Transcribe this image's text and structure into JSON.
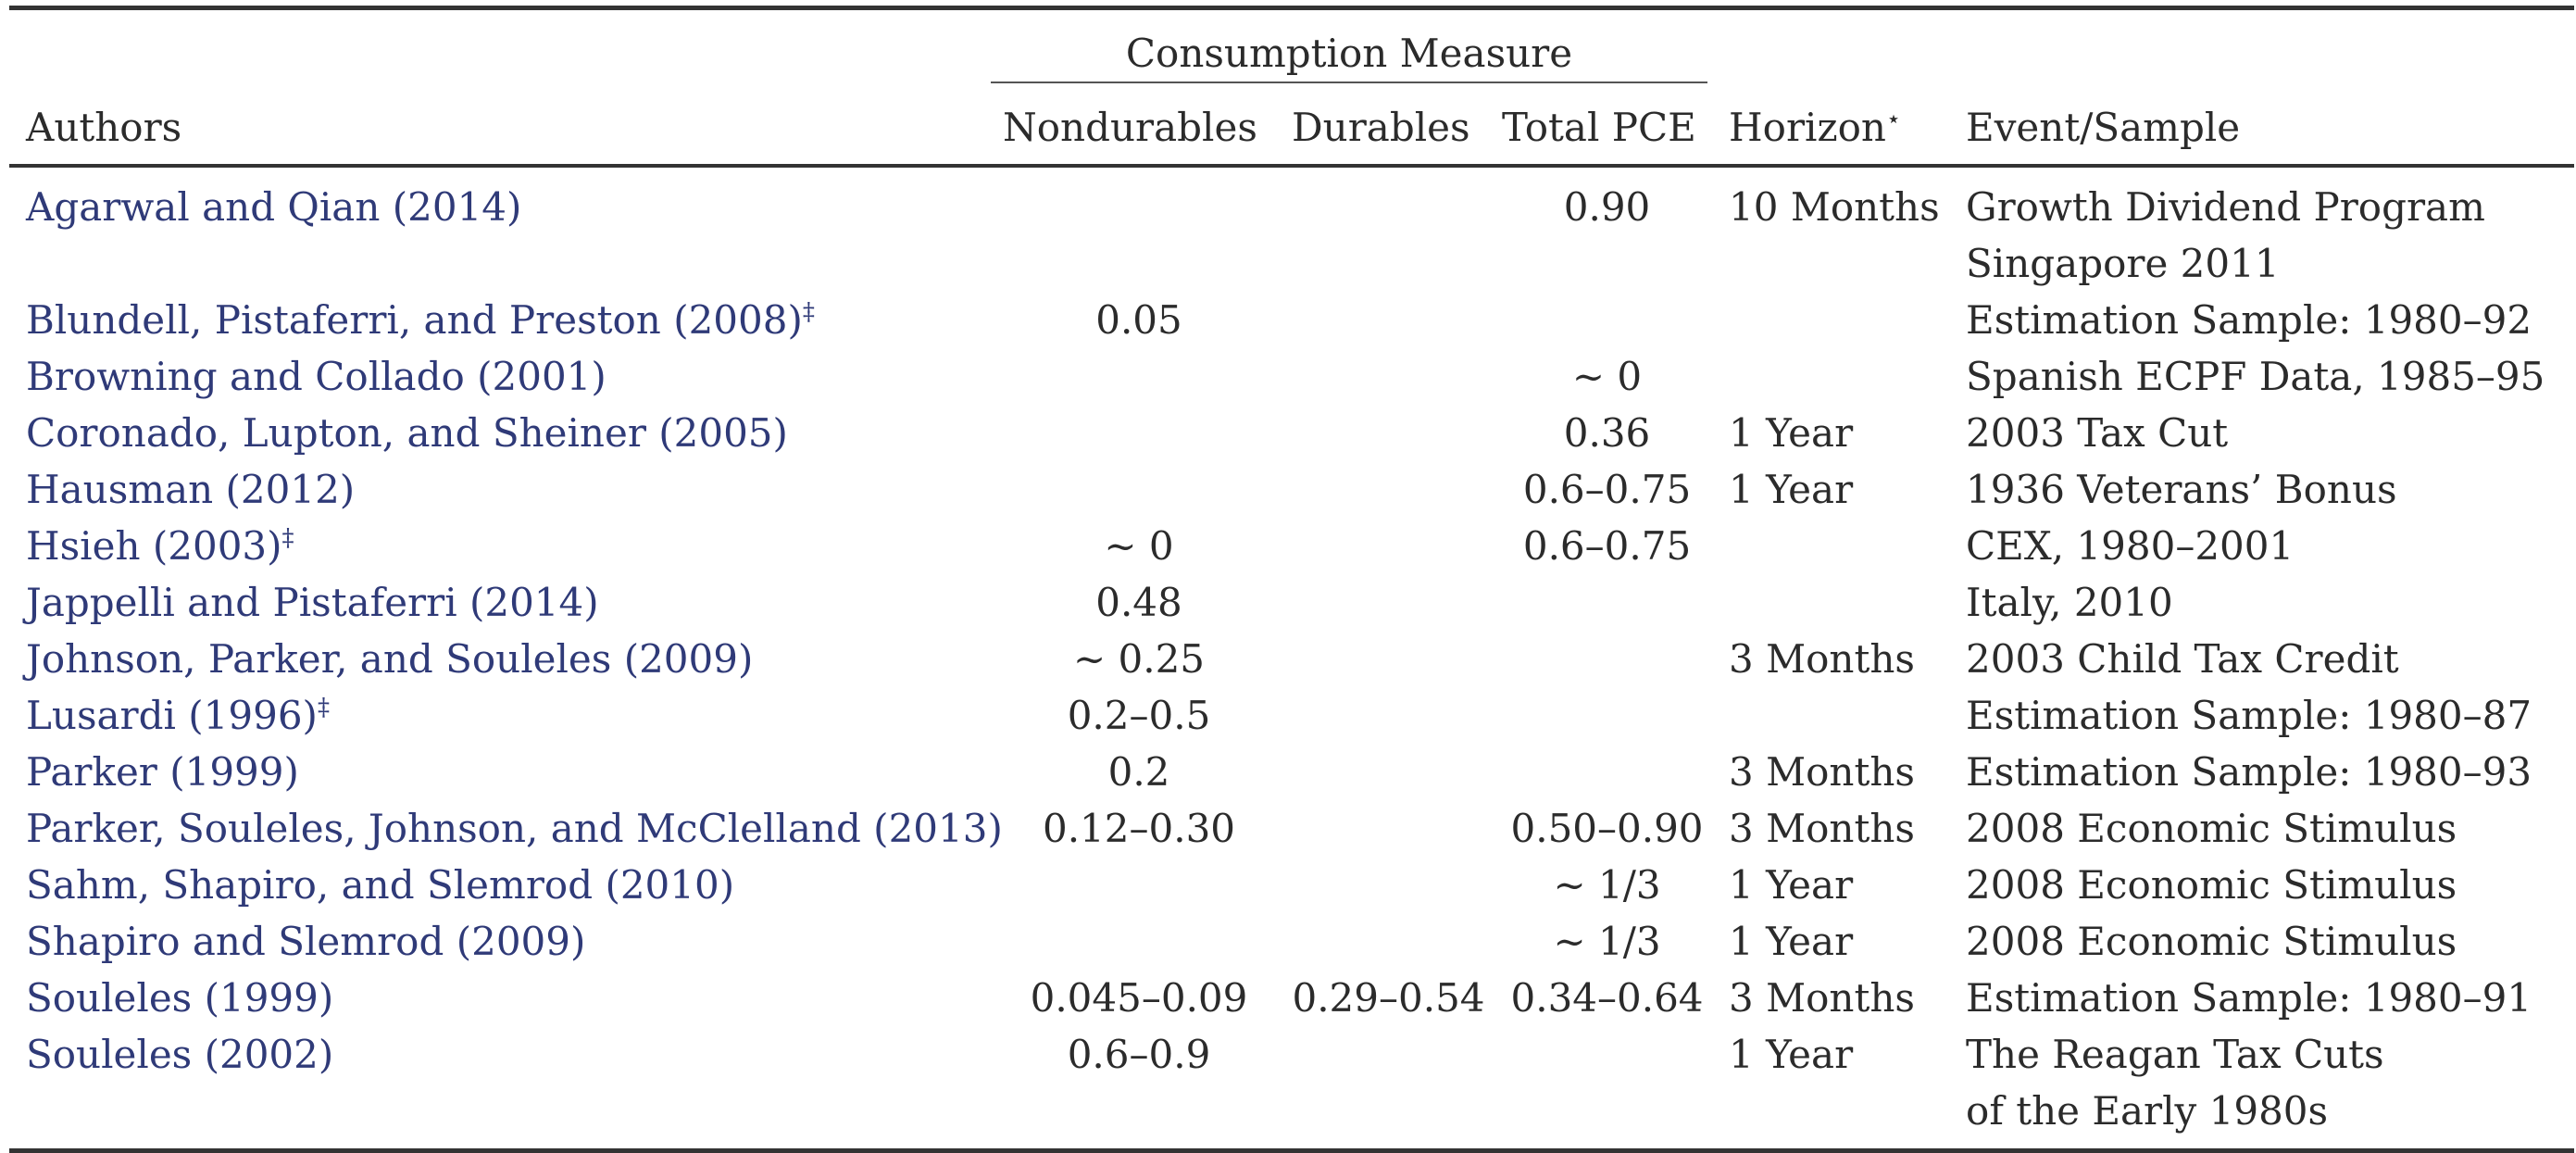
{
  "table": {
    "group_header": "Consumption Measure",
    "headers": {
      "authors": "Authors",
      "nondurables": "Nondurables",
      "durables": "Durables",
      "total_pce": "Total PCE",
      "horizon": "Horizon",
      "horizon_mark": "⋆",
      "event": "Event/Sample"
    },
    "rows": [
      {
        "authors": "Agarwal and Qian (2014)",
        "mark": "",
        "nondurables": "",
        "durables": "",
        "total_pce": "0.90",
        "horizon": "10 Months",
        "event": [
          "Growth Dividend Program",
          "Singapore 2011"
        ]
      },
      {
        "authors": "Blundell, Pistaferri, and Preston (2008)",
        "mark": "‡",
        "nondurables": "0.05",
        "durables": "",
        "total_pce": "",
        "horizon": "",
        "event": [
          "Estimation Sample: 1980–92",
          ""
        ]
      },
      {
        "authors": "Browning and Collado (2001)",
        "mark": "",
        "nondurables": "",
        "durables": "",
        "total_pce": "∼ 0",
        "horizon": "",
        "event": [
          "Spanish ECPF Data, 1985–95",
          ""
        ]
      },
      {
        "authors": "Coronado, Lupton, and Sheiner (2005)",
        "mark": "",
        "nondurables": "",
        "durables": "",
        "total_pce": "0.36",
        "horizon": "1 Year",
        "event": [
          "2003 Tax Cut",
          ""
        ]
      },
      {
        "authors": "Hausman (2012)",
        "mark": "",
        "nondurables": "",
        "durables": "",
        "total_pce": "0.6–0.75",
        "horizon": "1 Year",
        "event": [
          "1936 Veterans’ Bonus",
          ""
        ]
      },
      {
        "authors": "Hsieh (2003)",
        "mark": "‡",
        "nondurables": "∼ 0",
        "durables": "",
        "total_pce": "0.6–0.75",
        "horizon": "",
        "event": [
          "CEX, 1980–2001",
          ""
        ]
      },
      {
        "authors": "Jappelli and Pistaferri (2014)",
        "mark": "",
        "nondurables": "0.48",
        "durables": "",
        "total_pce": "",
        "horizon": "",
        "event": [
          "Italy, 2010",
          ""
        ]
      },
      {
        "authors": "Johnson, Parker, and Souleles (2009)",
        "mark": "",
        "nondurables": "∼ 0.25",
        "durables": "",
        "total_pce": "",
        "horizon": "3 Months",
        "event": [
          "2003 Child Tax Credit",
          ""
        ]
      },
      {
        "authors": "Lusardi (1996)",
        "mark": "‡",
        "nondurables": "0.2–0.5",
        "durables": "",
        "total_pce": "",
        "horizon": "",
        "event": [
          "Estimation Sample: 1980–87",
          ""
        ]
      },
      {
        "authors": "Parker (1999)",
        "mark": "",
        "nondurables": "0.2",
        "durables": "",
        "total_pce": "",
        "horizon": "3 Months",
        "event": [
          "Estimation Sample: 1980–93",
          ""
        ]
      },
      {
        "authors": "Parker, Souleles, Johnson, and McClelland (2013)",
        "mark": "",
        "nondurables": "0.12–0.30",
        "durables": "",
        "total_pce": "0.50–0.90",
        "horizon": "3 Months",
        "event": [
          "2008 Economic Stimulus",
          ""
        ]
      },
      {
        "authors": "Sahm, Shapiro, and Slemrod (2010)",
        "mark": "",
        "nondurables": "",
        "durables": "",
        "total_pce": "∼ 1/3",
        "horizon": "1 Year",
        "event": [
          "2008 Economic Stimulus",
          ""
        ]
      },
      {
        "authors": "Shapiro and Slemrod (2009)",
        "mark": "",
        "nondurables": "",
        "durables": "",
        "total_pce": "∼ 1/3",
        "horizon": "1 Year",
        "event": [
          "2008 Economic Stimulus",
          ""
        ]
      },
      {
        "authors": "Souleles (1999)",
        "mark": "",
        "nondurables": "0.045–0.09",
        "durables": "0.29–0.54",
        "total_pce": "0.34–0.64",
        "horizon": "3 Months",
        "event": [
          "Estimation Sample: 1980–91",
          ""
        ]
      },
      {
        "authors": "Souleles (2002)",
        "mark": "",
        "nondurables": "0.6–0.9",
        "durables": "",
        "total_pce": "",
        "horizon": "1 Year",
        "event": [
          "The Reagan Tax Cuts",
          "of the Early 1980s"
        ]
      }
    ]
  }
}
